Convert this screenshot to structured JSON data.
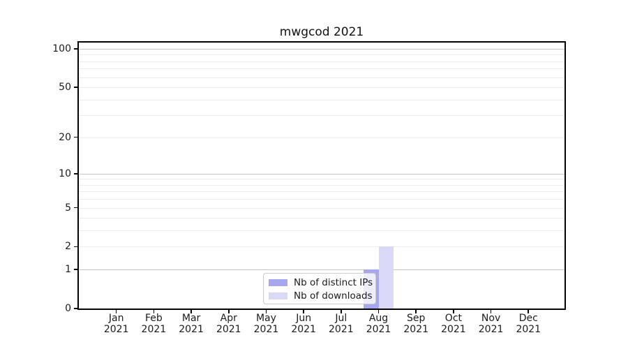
{
  "chart_data": {
    "type": "bar",
    "title": "mwgcod 2021",
    "year": "2021",
    "months": [
      "Jan",
      "Feb",
      "Mar",
      "Apr",
      "May",
      "Jun",
      "Jul",
      "Aug",
      "Sep",
      "Oct",
      "Nov",
      "Dec"
    ],
    "categories": [
      "Jan 2021",
      "Feb 2021",
      "Mar 2021",
      "Apr 2021",
      "May 2021",
      "Jun 2021",
      "Jul 2021",
      "Aug 2021",
      "Sep 2021",
      "Oct 2021",
      "Nov 2021",
      "Dec 2021"
    ],
    "series": [
      {
        "name": "Nb of distinct IPs",
        "color": "#a7a7ef",
        "values": [
          0,
          0,
          0,
          0,
          0,
          0,
          0,
          1,
          0,
          0,
          0,
          0
        ]
      },
      {
        "name": "Nb of downloads",
        "color": "#dadaf8",
        "values": [
          0,
          0,
          0,
          0,
          0,
          0,
          0,
          2,
          0,
          0,
          0,
          0
        ]
      }
    ],
    "y_axis": {
      "scale": "log1p",
      "tick_values": [
        0,
        1,
        2,
        5,
        10,
        20,
        50,
        100
      ],
      "tick_labels": [
        "0",
        "1",
        "2",
        "5",
        "10",
        "20",
        "50",
        "100"
      ],
      "max": 112,
      "major_grid": [
        1,
        10,
        100
      ],
      "minor_grid": [
        2,
        3,
        4,
        5,
        6,
        7,
        8,
        9,
        20,
        30,
        40,
        50,
        60,
        70,
        80,
        90
      ]
    },
    "xlabel": "",
    "ylabel": "",
    "grid": "horizontal",
    "legend": {
      "position": "bottom-center-inside",
      "items": [
        "Nb of distinct IPs",
        "Nb of downloads"
      ]
    },
    "colors": {
      "axis": "#000000",
      "text": "#1a1a1a",
      "major_grid": "#c4c4c4",
      "minor_grid": "#ebebeb",
      "legend_border": "#cccccc",
      "legend_bg": "rgba(255,255,255,0.8)"
    }
  }
}
